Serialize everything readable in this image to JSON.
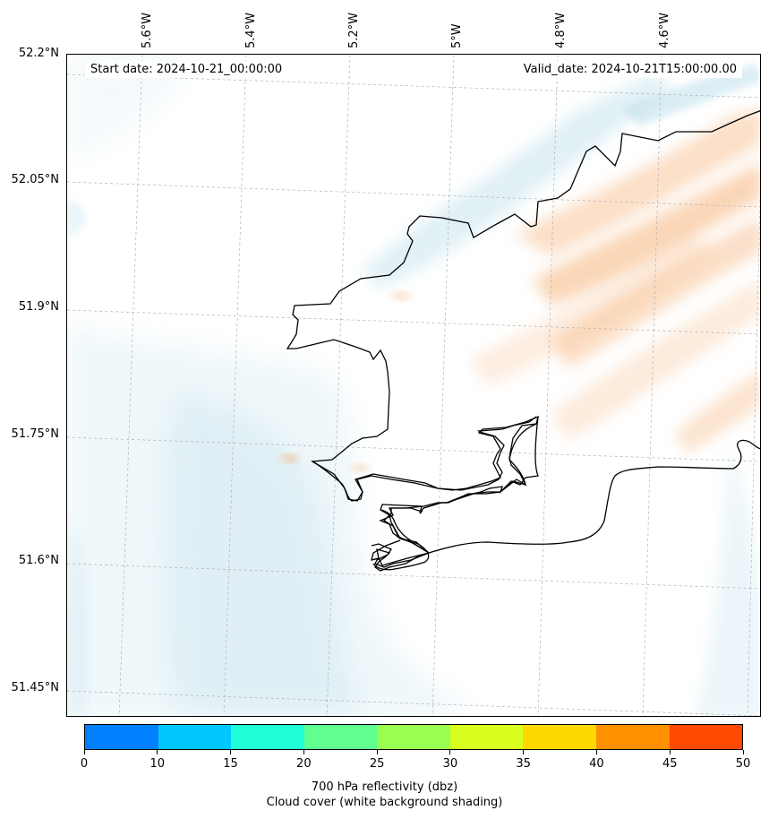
{
  "map": {
    "start_date": "Start date: 2024-10-21_00:00:00",
    "valid_date": "Valid_date: 2024-10-21T15:00:00.00",
    "lon_labels": [
      "5.6°W",
      "5.4°W",
      "5.2°W",
      "5°W",
      "4.8°W",
      "4.6°W"
    ],
    "lat_labels": [
      "52.2°N",
      "52.05°N",
      "51.9°N",
      "51.75°N",
      "51.6°N",
      "51.45°N"
    ],
    "colors": {
      "coastline": "#000000",
      "cloud_shade": "#a9d6e5",
      "reflectivity_shade": "#f4a460",
      "gridline": "#b0b0b0"
    }
  },
  "colorbar": {
    "ticks": [
      "0",
      "10",
      "15",
      "20",
      "25",
      "30",
      "35",
      "40",
      "45",
      "50"
    ],
    "colors": [
      "#0080ff",
      "#00c8ff",
      "#20ffd8",
      "#60ff90",
      "#98ff50",
      "#d8ff20",
      "#ffd800",
      "#ff9000",
      "#ff4800"
    ],
    "title_line1": "700 hPa reflectivity (dbz)",
    "title_line2": "Cloud cover (white background shading)"
  }
}
